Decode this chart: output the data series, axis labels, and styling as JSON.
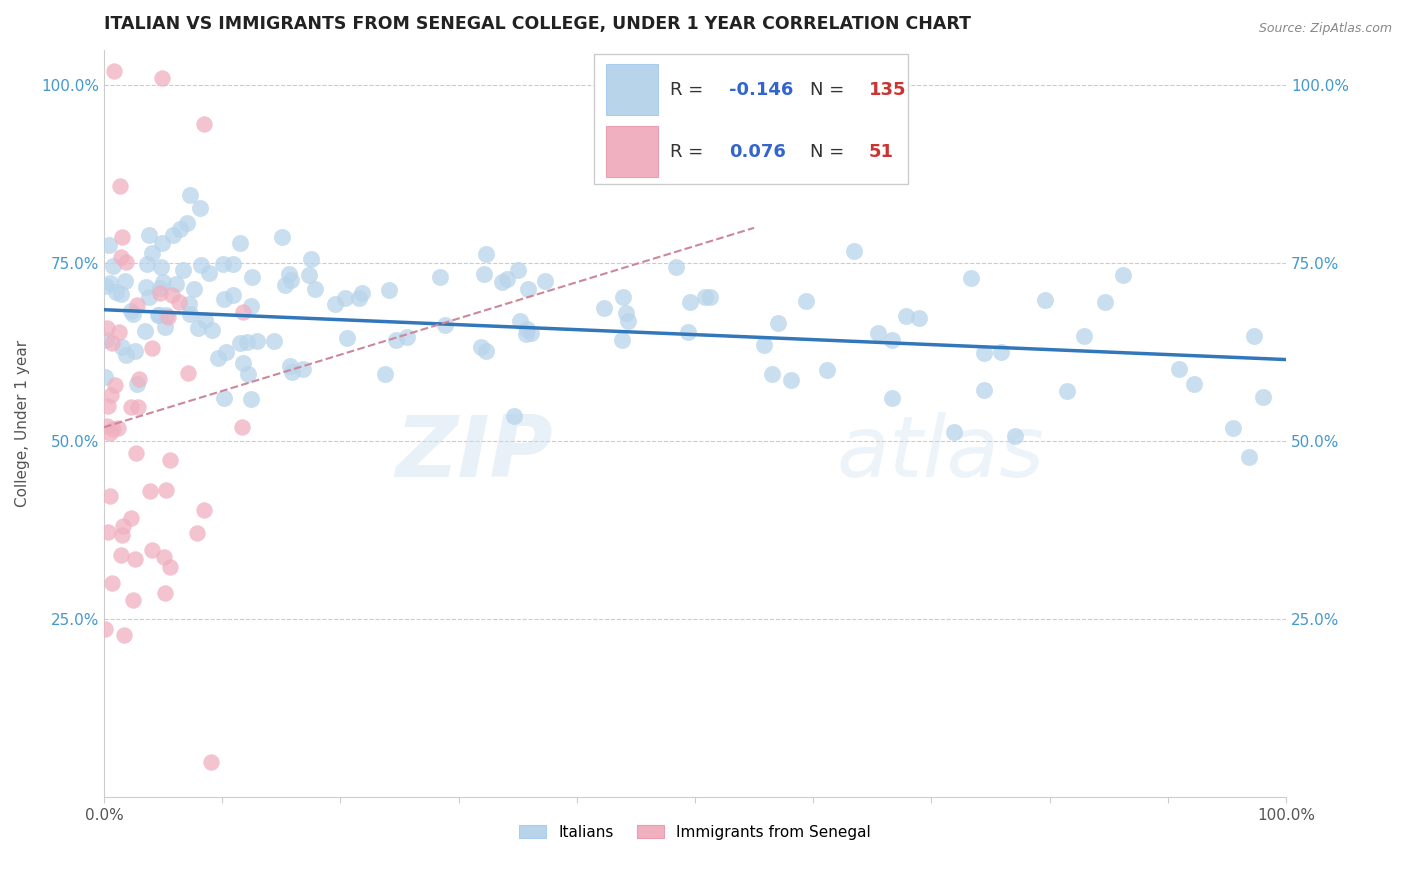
{
  "title": "ITALIAN VS IMMIGRANTS FROM SENEGAL COLLEGE, UNDER 1 YEAR CORRELATION CHART",
  "source_text": "Source: ZipAtlas.com",
  "ylabel": "College, Under 1 year",
  "watermark_part1": "ZIP",
  "watermark_part2": "atlas",
  "legend_label1": "Italians",
  "legend_label2": "Immigrants from Senegal",
  "R1": -0.146,
  "N1": 135,
  "R2": 0.076,
  "N2": 51,
  "color1": "#b8d4ea",
  "color2": "#f0b0c0",
  "line1_color": "#3377bb",
  "line2_color": "#cc8899",
  "ytick_color": "#4499cc",
  "xlim": [
    0.0,
    1.0
  ],
  "ylim": [
    0.0,
    1.05
  ],
  "seed1": 77,
  "seed2": 55
}
